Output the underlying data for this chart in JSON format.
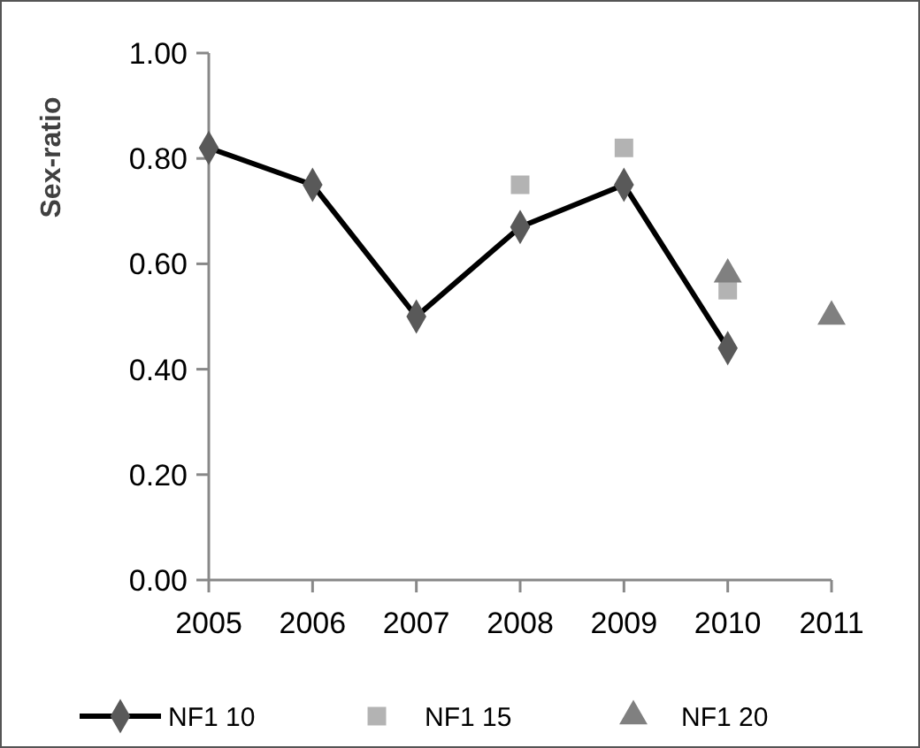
{
  "chart_data": {
    "type": "line",
    "ylabel": "Sex-ratio",
    "categories": [
      "2005",
      "2006",
      "2007",
      "2008",
      "2009",
      "2010",
      "2011"
    ],
    "ylim": [
      0,
      1
    ],
    "yticks": [
      {
        "value": 0,
        "label": "0.00"
      },
      {
        "value": 0.2,
        "label": "0.20"
      },
      {
        "value": 0.4,
        "label": "0.40"
      },
      {
        "value": 0.6,
        "label": "0.60"
      },
      {
        "value": 0.8,
        "label": "0.80"
      },
      {
        "value": 1,
        "label": "1.00"
      }
    ],
    "grid": false,
    "legend": "bottom",
    "series": [
      {
        "name": "NF1 10",
        "color": "#000000",
        "marker": "diamond",
        "values": [
          0.82,
          0.75,
          0.5,
          0.67,
          0.75,
          0.44,
          null
        ]
      },
      {
        "name": "NF1 15",
        "type": "scatter",
        "color": "#b3b3b3",
        "marker": "square",
        "values": [
          null,
          null,
          null,
          0.75,
          0.82,
          0.55,
          null
        ]
      },
      {
        "name": "NF1 20",
        "type": "scatter",
        "color": "#808080",
        "marker": "triangle",
        "values": [
          null,
          null,
          null,
          null,
          null,
          0.58,
          0.5
        ]
      }
    ]
  }
}
